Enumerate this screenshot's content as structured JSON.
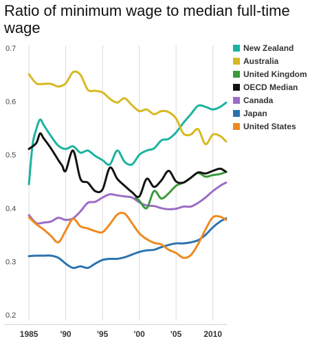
{
  "chart_data": {
    "type": "line",
    "title": "Ratio of minimum wage to median full-time wage",
    "xlabel": "",
    "ylabel": "",
    "xlim": [
      1984.8,
      2011.9
    ],
    "ylim": [
      0.2,
      0.7
    ],
    "x_ticks": [
      {
        "value": 1985,
        "label": "1985"
      },
      {
        "value": 1990,
        "label": "'90"
      },
      {
        "value": 1995,
        "label": "'95"
      },
      {
        "value": 2000,
        "label": "'00"
      },
      {
        "value": 2005,
        "label": "'05"
      },
      {
        "value": 2010,
        "label": "2010"
      }
    ],
    "y_ticks": [
      {
        "value": 0.7,
        "label": "0.7"
      },
      {
        "value": 0.6,
        "label": "0.6"
      },
      {
        "value": 0.5,
        "label": "0.5"
      },
      {
        "value": 0.4,
        "label": "0.4"
      },
      {
        "value": 0.3,
        "label": "0.3"
      },
      {
        "value": 0.2,
        "label": "0.2"
      }
    ],
    "grid": {
      "vertical": true,
      "horizontal": false
    },
    "legend_position": "right",
    "series": [
      {
        "name": "New Zealand",
        "color": "#1ab39f",
        "x": [
          1985,
          1985.5,
          1986,
          1986.5,
          1987,
          1988,
          1989,
          1990,
          1991,
          1992,
          1993,
          1994,
          1995,
          1996,
          1997,
          1998,
          1999,
          2000,
          2001,
          2002,
          2003,
          2004,
          2005,
          2006,
          2007,
          2008,
          2009,
          2010,
          2011,
          2011.8
        ],
        "y": [
          0.445,
          0.52,
          0.548,
          0.566,
          0.556,
          0.535,
          0.517,
          0.511,
          0.516,
          0.504,
          0.508,
          0.498,
          0.49,
          0.482,
          0.508,
          0.487,
          0.482,
          0.5,
          0.508,
          0.512,
          0.527,
          0.53,
          0.542,
          0.56,
          0.576,
          0.592,
          0.59,
          0.585,
          0.59,
          0.598
        ]
      },
      {
        "name": "Australia",
        "color": "#d6b920",
        "x": [
          1985,
          1986,
          1987,
          1988,
          1989,
          1990,
          1991,
          1992,
          1993,
          1994,
          1995,
          1996,
          1997,
          1998,
          1999,
          2000,
          2001,
          2002,
          2003,
          2004,
          2005,
          2006,
          2007,
          2008,
          2009,
          2010,
          2011,
          2011.8
        ],
        "y": [
          0.651,
          0.634,
          0.633,
          0.633,
          0.628,
          0.634,
          0.655,
          0.65,
          0.622,
          0.62,
          0.617,
          0.605,
          0.598,
          0.606,
          0.593,
          0.582,
          0.585,
          0.576,
          0.582,
          0.58,
          0.568,
          0.54,
          0.538,
          0.548,
          0.52,
          0.538,
          0.535,
          0.525
        ]
      },
      {
        "name": "United Kingdom",
        "color": "#3a9a3a",
        "x": [
          1999.5,
          2000,
          2001,
          2002,
          2003,
          2004,
          2005,
          2006,
          2007,
          2008,
          2009,
          2010,
          2011,
          2011.8
        ],
        "y": [
          0.419,
          0.414,
          0.4,
          0.432,
          0.418,
          0.428,
          0.442,
          0.448,
          0.457,
          0.466,
          0.459,
          0.462,
          0.464,
          0.468
        ]
      },
      {
        "name": "OECD Median",
        "color": "#111111",
        "x": [
          1985,
          1986,
          1986.5,
          1987,
          1988,
          1989,
          1989.5,
          1990,
          1991,
          1992,
          1993,
          1994,
          1995,
          1996,
          1997,
          1998,
          1999,
          2000,
          2001,
          2002,
          2003,
          2004,
          2005,
          2006,
          2007,
          2008,
          2009,
          2010,
          2011,
          2011.8
        ],
        "y": [
          0.511,
          0.522,
          0.54,
          0.531,
          0.512,
          0.49,
          0.48,
          0.47,
          0.508,
          0.455,
          0.448,
          0.432,
          0.435,
          0.476,
          0.455,
          0.442,
          0.43,
          0.422,
          0.455,
          0.44,
          0.452,
          0.47,
          0.45,
          0.448,
          0.457,
          0.467,
          0.465,
          0.47,
          0.474,
          0.468
        ]
      },
      {
        "name": "Canada",
        "color": "#9b6cc4",
        "x": [
          1985,
          1986,
          1987,
          1988,
          1989,
          1990,
          1991,
          1992,
          1993,
          1994,
          1995,
          1996,
          1997,
          1998,
          1999,
          2000,
          2001,
          2002,
          2003,
          2004,
          2005,
          2006,
          2007,
          2008,
          2009,
          2010,
          2011,
          2011.8
        ],
        "y": [
          0.387,
          0.372,
          0.373,
          0.375,
          0.382,
          0.378,
          0.381,
          0.394,
          0.41,
          0.412,
          0.42,
          0.426,
          0.424,
          0.422,
          0.42,
          0.411,
          0.405,
          0.404,
          0.4,
          0.398,
          0.399,
          0.403,
          0.403,
          0.41,
          0.42,
          0.432,
          0.442,
          0.448
        ]
      },
      {
        "name": "Japan",
        "color": "#2b73b0",
        "x": [
          1985,
          1986,
          1987,
          1988,
          1989,
          1990,
          1991,
          1992,
          1993,
          1994,
          1995,
          1996,
          1997,
          1998,
          1999,
          2000,
          2001,
          2002,
          2003,
          2004,
          2005,
          2006,
          2007,
          2008,
          2009,
          2010,
          2011,
          2011.8
        ],
        "y": [
          0.31,
          0.311,
          0.311,
          0.311,
          0.307,
          0.296,
          0.288,
          0.291,
          0.288,
          0.296,
          0.303,
          0.305,
          0.305,
          0.308,
          0.313,
          0.318,
          0.321,
          0.322,
          0.327,
          0.331,
          0.334,
          0.334,
          0.336,
          0.34,
          0.35,
          0.364,
          0.375,
          0.381
        ]
      },
      {
        "name": "United States",
        "color": "#ef8a1f",
        "x": [
          1985,
          1986,
          1987,
          1988,
          1989,
          1990,
          1991,
          1992,
          1993,
          1994,
          1995,
          1996,
          1997,
          1998,
          1999,
          2000,
          2001,
          2002,
          2003,
          2004,
          2005,
          2006,
          2007,
          2008,
          2009,
          2010,
          2011,
          2011.8
        ],
        "y": [
          0.383,
          0.37,
          0.36,
          0.348,
          0.336,
          0.358,
          0.38,
          0.366,
          0.362,
          0.357,
          0.355,
          0.37,
          0.388,
          0.39,
          0.372,
          0.353,
          0.342,
          0.335,
          0.332,
          0.322,
          0.316,
          0.307,
          0.312,
          0.333,
          0.36,
          0.383,
          0.384,
          0.378
        ]
      }
    ]
  }
}
